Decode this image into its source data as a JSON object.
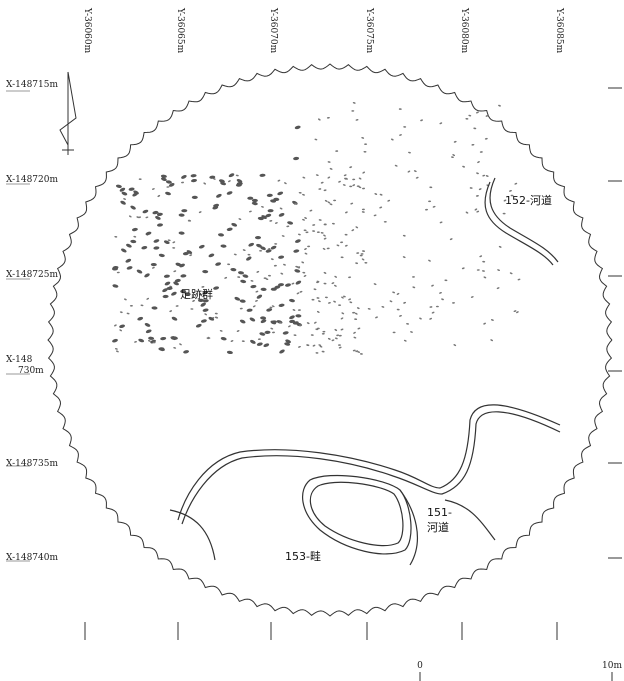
{
  "grid": {
    "y_labels": [
      "Y-36060m",
      "Y-36065m",
      "Y-36070m",
      "Y-36075m",
      "Y-36080m",
      "Y-36085m"
    ],
    "x_labels": [
      "X-148715m",
      "X-148720m",
      "X-148725m",
      "X-148",
      "730m",
      "X-148735m",
      "X-148740m"
    ]
  },
  "features": {
    "footprints": "足跡群",
    "channel_152": "152-河道",
    "channel_151_line1": "151-",
    "channel_151_line2": "河道",
    "ridge_153": "153-畦"
  },
  "scale": {
    "start": "0",
    "end": "10m"
  }
}
